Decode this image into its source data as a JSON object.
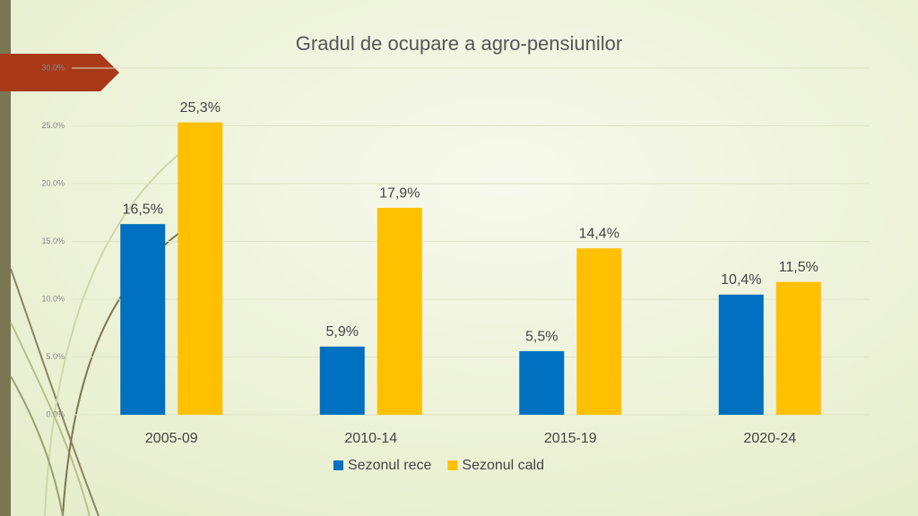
{
  "chart_data": {
    "type": "bar",
    "title": "Gradul de ocupare a agro-pensiunilor",
    "categories": [
      "2005-09",
      "2010-14",
      "2015-19",
      "2020-24"
    ],
    "series": [
      {
        "name": "Sezonul rece",
        "color": "#0070c0",
        "values": [
          16.5,
          5.9,
          5.5,
          10.4
        ],
        "value_labels": [
          "16,5%",
          "5,9%",
          "5,5%",
          "10,4%"
        ]
      },
      {
        "name": "Sezonul cald",
        "color": "#ffc000",
        "values": [
          25.3,
          17.9,
          14.4,
          11.5
        ],
        "value_labels": [
          "25,3%",
          "17,9%",
          "14,4%",
          "11,5%"
        ]
      }
    ],
    "ylim": [
      0,
      30
    ],
    "yticks": [
      {
        "value": 0,
        "label": "0.0%"
      },
      {
        "value": 5,
        "label": "5.0%"
      },
      {
        "value": 10,
        "label": "10.0%"
      },
      {
        "value": 15,
        "label": "15.0%"
      },
      {
        "value": 20,
        "label": "20.0%"
      },
      {
        "value": 25,
        "label": "25.0%"
      },
      {
        "value": 30,
        "label": "30.0%"
      }
    ],
    "grid": true,
    "legend": "bottom"
  }
}
